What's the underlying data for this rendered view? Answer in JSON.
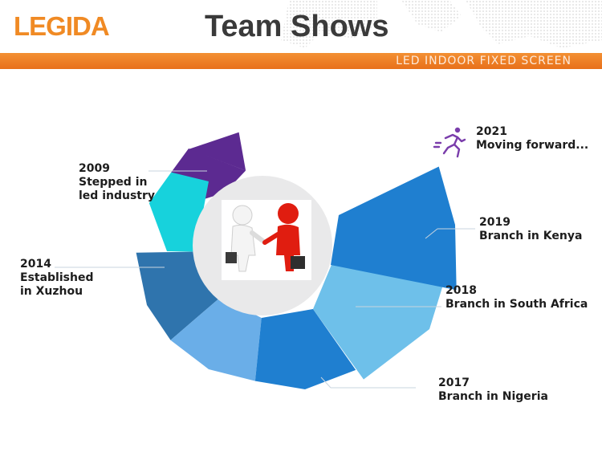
{
  "header": {
    "logo_text": "LEGIDA",
    "title": "Team Shows",
    "subtitle": "LED INDOOR FIXED SCREEN"
  },
  "milestones": [
    {
      "year": "2009",
      "lines": [
        "Stepped in",
        "led industry"
      ],
      "color": "#5c2a91"
    },
    {
      "year": "2014",
      "lines": [
        "Established",
        "in Xuzhou"
      ],
      "color": "#2f74ad"
    },
    {
      "year": "2017",
      "lines": [
        "Branch in Nigeria"
      ],
      "color": "#1f7fd0"
    },
    {
      "year": "2018",
      "lines": [
        "Branch in South Africa"
      ],
      "color": "#6ec0ea"
    },
    {
      "year": "2019",
      "lines": [
        "Branch in Kenya"
      ],
      "color": "#1f7fd0"
    },
    {
      "year": "2021",
      "lines": [
        "Moving forward..."
      ],
      "color": "#7a3dab"
    }
  ],
  "segment_colors": {
    "cyan": "#17d2dc",
    "steel_blue": "#2f74ad",
    "light_blue": "#6aaee8",
    "center_disc": "#e9e9ea"
  },
  "icons": {
    "center": "handshake-figures-icon",
    "runner": "running-person-icon"
  }
}
